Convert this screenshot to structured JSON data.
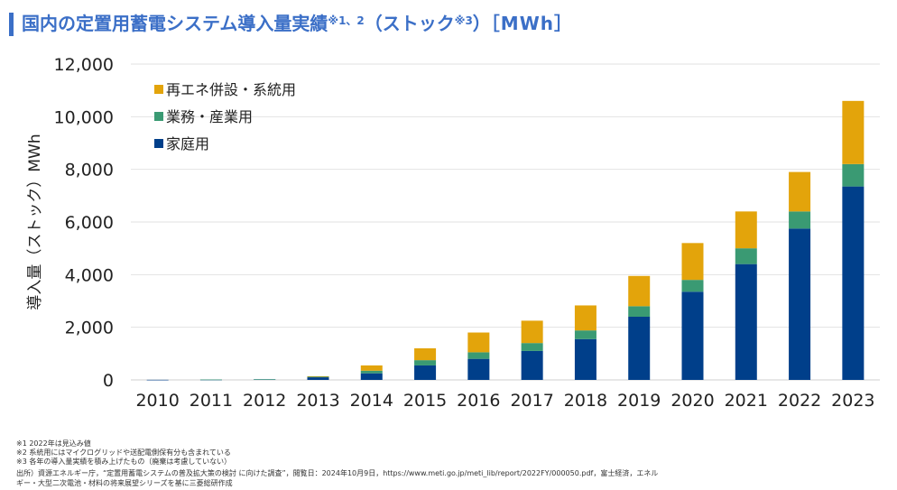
{
  "title": {
    "main": "国内の定置用蓄電システム導入量実績",
    "note_marks": "※1、2",
    "paren_open": "（ストック",
    "paren_mark": "※3",
    "paren_close": "）",
    "unit": "［MWh］"
  },
  "colors": {
    "accent": "#3b6fc7",
    "title": "#3b6fc7",
    "renewable": "#e3a40b",
    "commercial": "#3a9a73",
    "residential": "#003f8a",
    "grid": "#e2e2e2"
  },
  "chart_data": {
    "type": "bar",
    "stacked": true,
    "categories": [
      "2010",
      "2011",
      "2012",
      "2013",
      "2014",
      "2015",
      "2016",
      "2017",
      "2018",
      "2019",
      "2020",
      "2021",
      "2022",
      "2023"
    ],
    "series": [
      {
        "name": "家庭用",
        "color_key": "residential",
        "values": [
          5,
          10,
          20,
          100,
          250,
          550,
          800,
          1100,
          1550,
          2400,
          3350,
          4400,
          5750,
          7350
        ]
      },
      {
        "name": "業務・産業用",
        "color_key": "commercial",
        "values": [
          0,
          5,
          5,
          20,
          100,
          200,
          250,
          300,
          330,
          400,
          450,
          600,
          650,
          850
        ]
      },
      {
        "name": "再エネ併設・系統用",
        "color_key": "renewable",
        "values": [
          0,
          0,
          0,
          20,
          200,
          450,
          750,
          850,
          950,
          1150,
          1400,
          1400,
          1500,
          2400
        ]
      }
    ],
    "legend_order": [
      "再エネ併設・系統用",
      "業務・産業用",
      "家庭用"
    ],
    "ylabel": "導入量（ストック）MWh",
    "ylim": [
      0,
      12000
    ],
    "yticks": [
      0,
      2000,
      4000,
      6000,
      8000,
      10000,
      12000
    ],
    "ytick_labels": [
      "0",
      "2,000",
      "4,000",
      "6,000",
      "8,000",
      "10,000",
      "12,000"
    ],
    "grid": true,
    "legend_position": "top-left"
  },
  "footnotes": [
    "※1  2022年は見込み値",
    "※2  系統用にはマイクログリッドや送配電側保有分も含まれている",
    "※3  各年の導入量実績を積み上げたもの（廃棄は考慮していない）"
  ],
  "source": [
    "出所）資源エネルギー庁，“定置用蓄電システムの普及拡大策の検討 に向けた調査”，閲覧日：2024年10月9日，https://www.meti.go.jp/meti_lib/report/2022FY/000050.pdf，富士経済，エネル",
    "ギー・大型二次電池・材料の将来展望シリーズを基に三菱総研作成"
  ]
}
